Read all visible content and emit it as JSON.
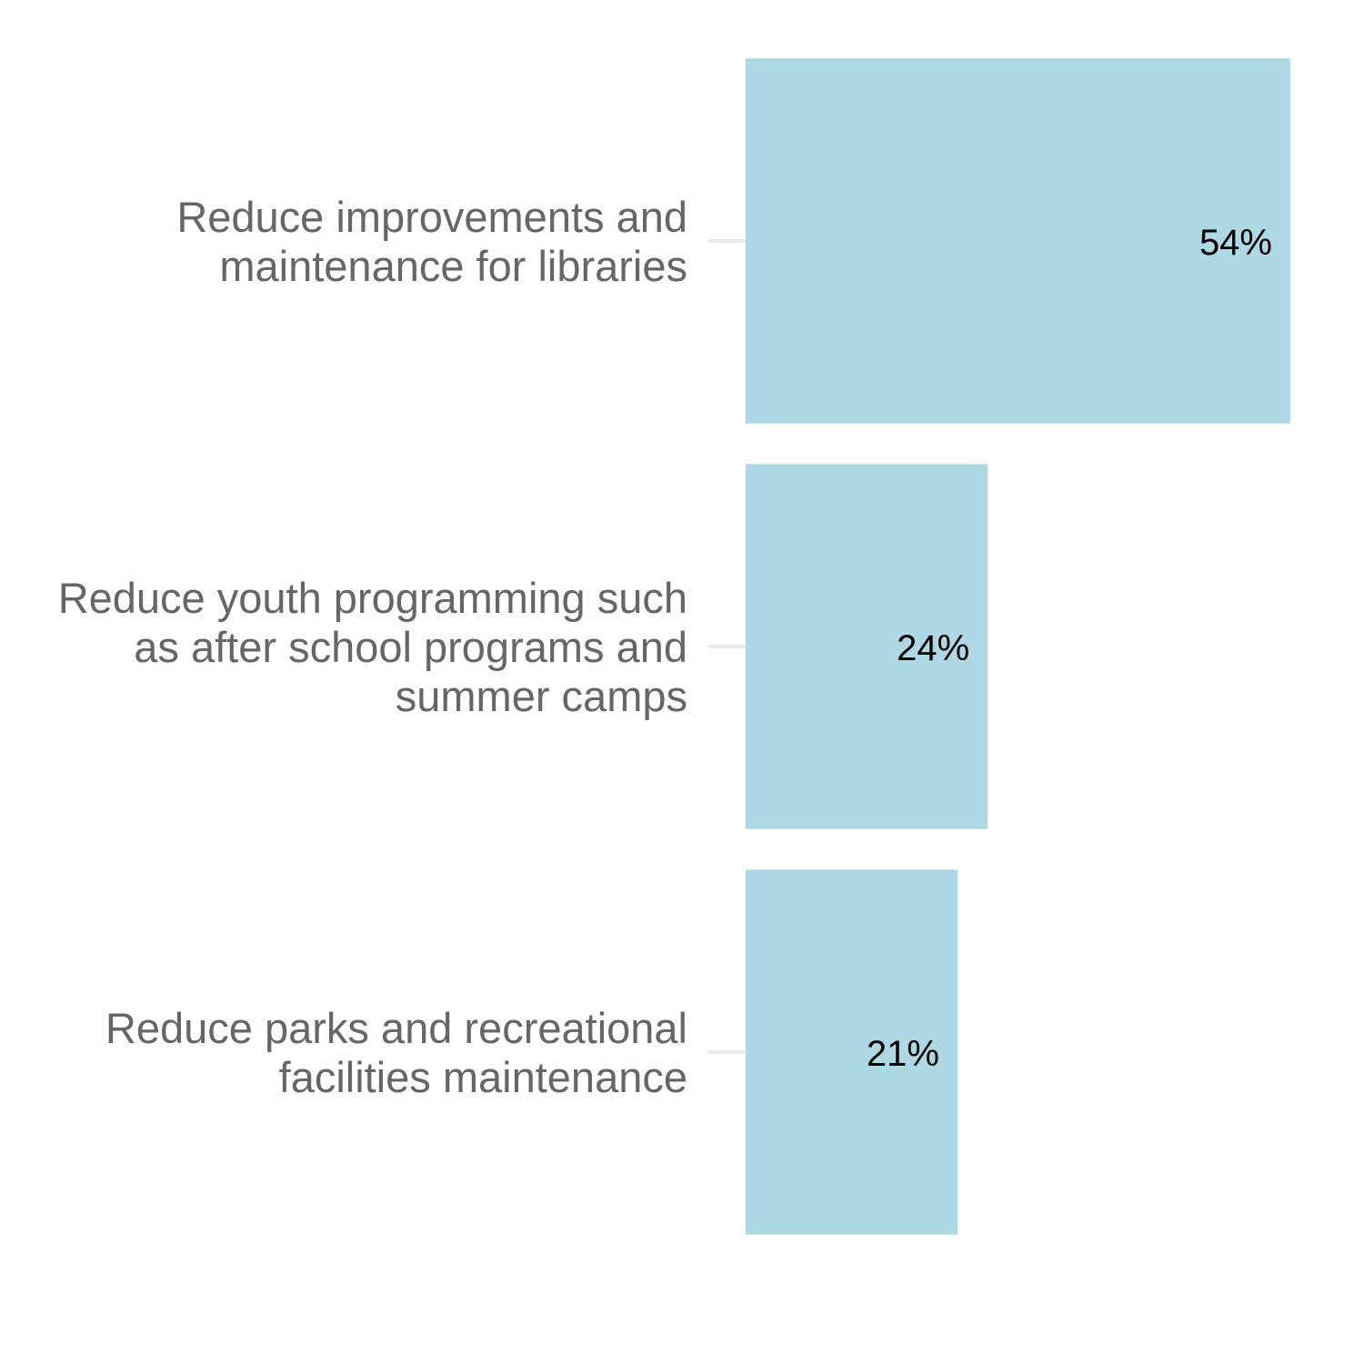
{
  "chart_data": {
    "type": "bar",
    "orientation": "horizontal",
    "categories": [
      "Reduce improvements and maintenance for libraries",
      "Reduce youth programming such as after school programs and summer camps",
      "Reduce parks and recreational facilities maintenance"
    ],
    "category_lines": [
      [
        "Reduce improvements and",
        "maintenance for libraries"
      ],
      [
        "Reduce youth programming such",
        "as after school programs and",
        "summer camps"
      ],
      [
        "Reduce parks and recreational",
        "facilities maintenance"
      ]
    ],
    "values": [
      54,
      24,
      21
    ],
    "value_labels": [
      "54%",
      "24%",
      "21%"
    ],
    "xlim": [
      0,
      54
    ],
    "grid": false,
    "legend": "none",
    "bar_color": "#add8e4",
    "label_color": "#666666",
    "value_label_color": "#000000",
    "tick_color": "#ebebeb"
  }
}
